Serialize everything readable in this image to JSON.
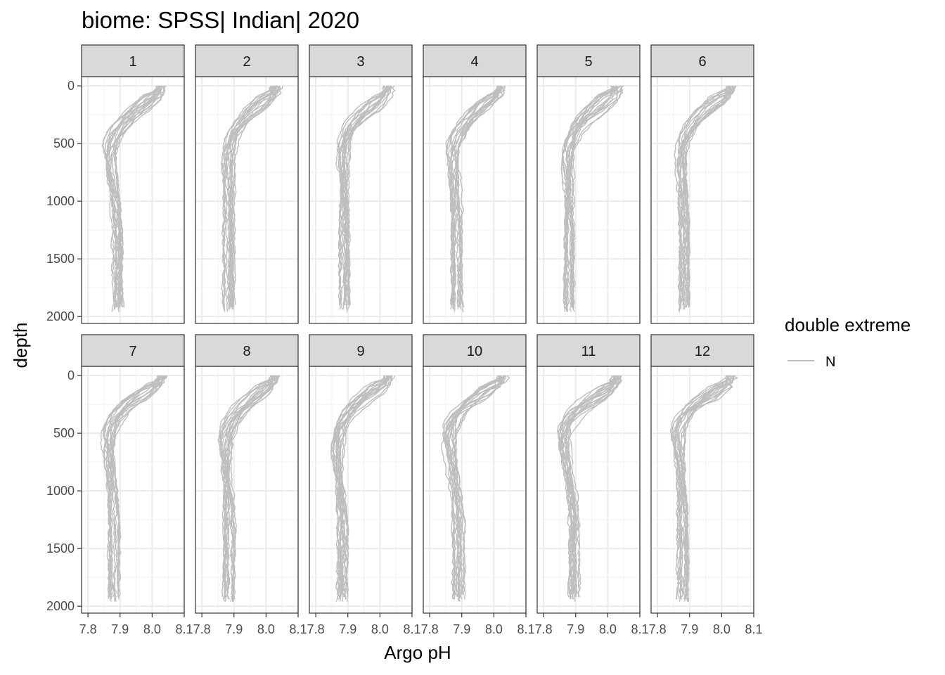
{
  "chart_data": {
    "type": "line",
    "title": "biome: SPSS| Indian| 2020",
    "xlabel": "Argo pH",
    "ylabel": "depth",
    "xlim": [
      7.78,
      8.1
    ],
    "ylim": [
      2060,
      -80
    ],
    "x_ticks": [
      7.8,
      7.9,
      8.0,
      8.1
    ],
    "x_tick_labels": [
      "7.8",
      "7.9",
      "8.0",
      "8.1"
    ],
    "y_ticks": [
      0,
      500,
      1000,
      1500,
      2000
    ],
    "y_tick_labels": [
      "0",
      "500",
      "1000",
      "1500",
      "2000"
    ],
    "y_reversed": true,
    "grid": true,
    "line_color": "#bebebe",
    "legend": {
      "title": "double extreme",
      "position": "right",
      "entries": [
        {
          "label": "N",
          "color": "#bebebe"
        }
      ]
    },
    "facets": [
      {
        "label": "1",
        "surface_pH": 8.03,
        "min_pH": 7.845,
        "min_depth": 650,
        "deep_pH": 7.89,
        "profiles": 18
      },
      {
        "label": "2",
        "surface_pH": 8.03,
        "min_pH": 7.86,
        "min_depth": 600,
        "deep_pH": 7.885,
        "profiles": 18
      },
      {
        "label": "3",
        "surface_pH": 8.03,
        "min_pH": 7.86,
        "min_depth": 600,
        "deep_pH": 7.89,
        "profiles": 18
      },
      {
        "label": "4",
        "surface_pH": 8.02,
        "min_pH": 7.85,
        "min_depth": 650,
        "deep_pH": 7.885,
        "profiles": 18
      },
      {
        "label": "5",
        "surface_pH": 8.03,
        "min_pH": 7.85,
        "min_depth": 650,
        "deep_pH": 7.88,
        "profiles": 18
      },
      {
        "label": "6",
        "surface_pH": 8.03,
        "min_pH": 7.85,
        "min_depth": 600,
        "deep_pH": 7.885,
        "profiles": 18
      },
      {
        "label": "7",
        "surface_pH": 8.03,
        "min_pH": 7.84,
        "min_depth": 600,
        "deep_pH": 7.88,
        "profiles": 18
      },
      {
        "label": "8",
        "surface_pH": 8.03,
        "min_pH": 7.85,
        "min_depth": 600,
        "deep_pH": 7.885,
        "profiles": 18
      },
      {
        "label": "9",
        "surface_pH": 8.03,
        "min_pH": 7.845,
        "min_depth": 600,
        "deep_pH": 7.885,
        "profiles": 18
      },
      {
        "label": "10",
        "surface_pH": 8.03,
        "min_pH": 7.835,
        "min_depth": 550,
        "deep_pH": 7.89,
        "profiles": 18
      },
      {
        "label": "11",
        "surface_pH": 8.03,
        "min_pH": 7.84,
        "min_depth": 550,
        "deep_pH": 7.895,
        "profiles": 18
      },
      {
        "label": "12",
        "surface_pH": 8.03,
        "min_pH": 7.84,
        "min_depth": 550,
        "deep_pH": 7.88,
        "profiles": 18
      }
    ]
  }
}
